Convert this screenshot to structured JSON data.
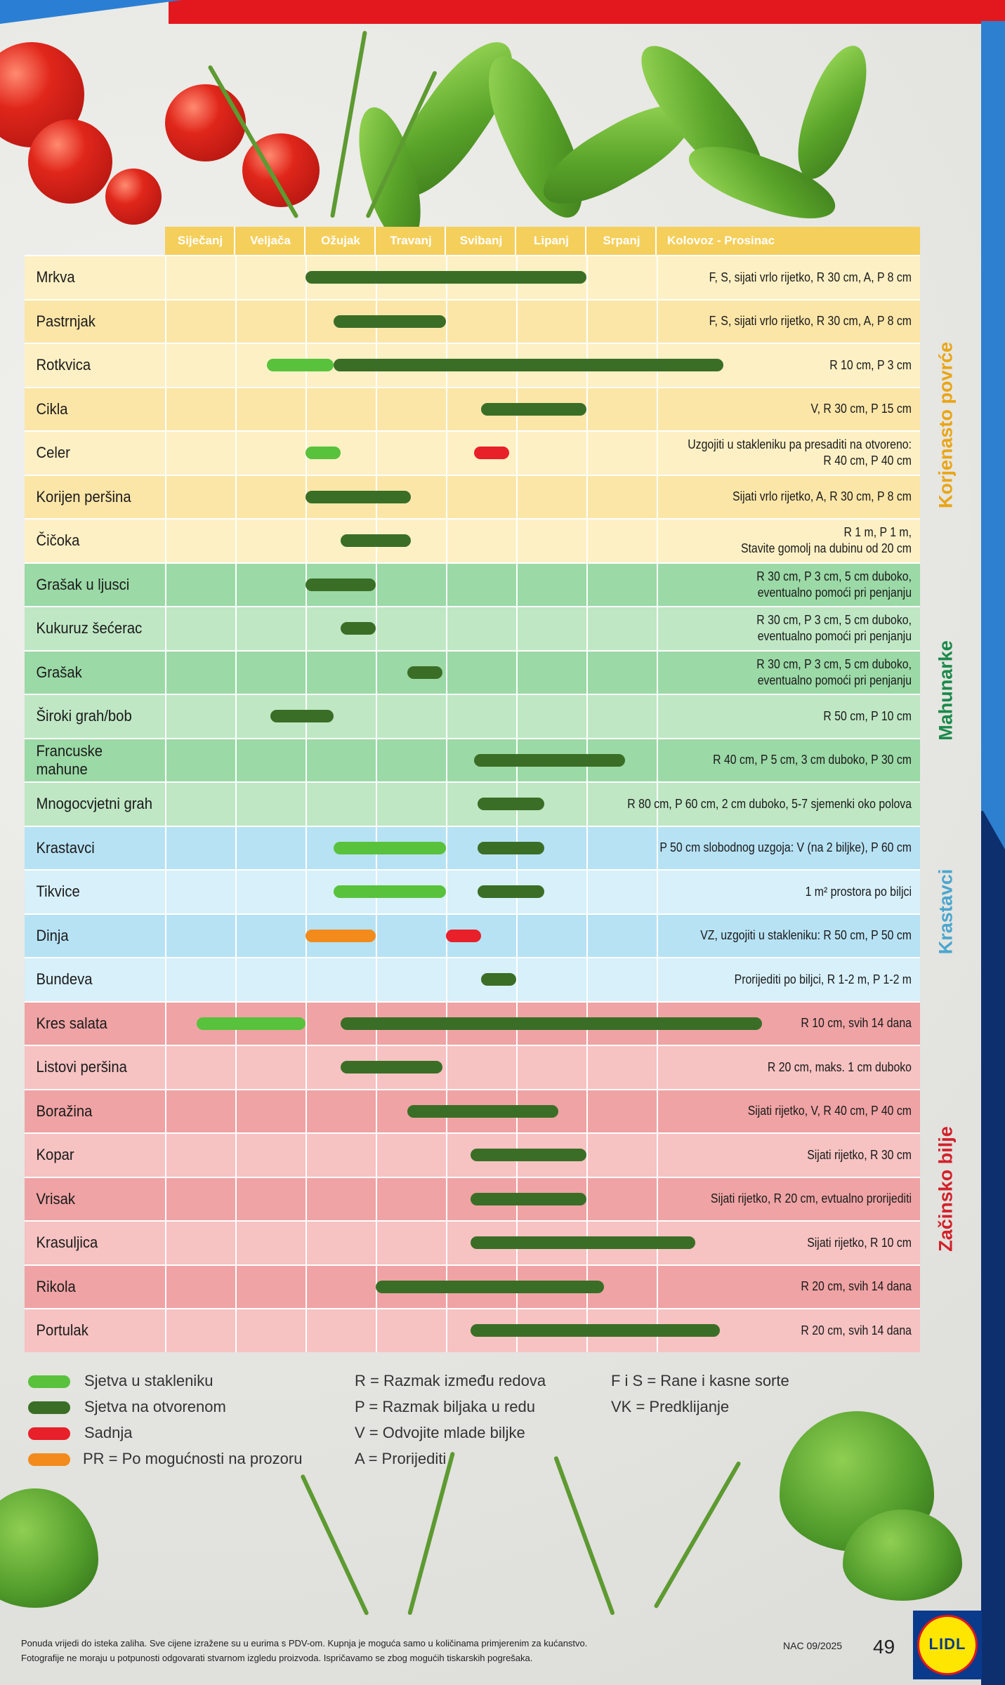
{
  "header": {
    "months": [
      "Siječanj",
      "Veljača",
      "Ožujak",
      "Travanj",
      "Svibanj",
      "Lipanj",
      "Srpanj"
    ],
    "last_range": "Kolovoz  -  Prosinac"
  },
  "groups": [
    {
      "label": "Korjenasto povrće",
      "color": "#e9a514"
    },
    {
      "label": "Mahunarke",
      "color": "#1a8a4a"
    },
    {
      "label": "Krastavci",
      "color": "#4aa6cf"
    },
    {
      "label": "Začinsko bilje",
      "color": "#d3202a"
    }
  ],
  "rows": [
    {
      "name": "Mrkva",
      "note": "F, S, sijati vrlo rijetko, R 30 cm,  A, P 8 cm"
    },
    {
      "name": "Pastrnjak",
      "note": "F, S, sijati vrlo rijetko, R 30 cm,  A, P 8 cm"
    },
    {
      "name": "Rotkvica",
      "note": "R 10 cm, P 3 cm"
    },
    {
      "name": "Cikla",
      "note": "V, R 30 cm, P 15 cm"
    },
    {
      "name": "Celer",
      "note": "Uzgojiti u stakleniku pa presaditi na otvoreno:\nR 40 cm, P 40 cm"
    },
    {
      "name": "Korijen peršina",
      "note": "Sijati vrlo rijetko, A, R 30 cm, P 8 cm"
    },
    {
      "name": "Čičoka",
      "note": "R 1 m, P 1 m,\nStavite gomolj na dubinu od 20 cm"
    },
    {
      "name": "Grašak u ljusci",
      "note": "R 30 cm, P 3 cm, 5 cm duboko,\neventualno pomoći pri penjanju"
    },
    {
      "name": "Kukuruz šećerac",
      "note": "R 30 cm, P 3 cm, 5 cm duboko,\neventualno pomoći pri penjanju"
    },
    {
      "name": "Grašak",
      "note": "R 30 cm, P 3 cm, 5 cm duboko,\neventualno pomoći pri penjanju"
    },
    {
      "name": "Široki grah/bob",
      "note": "R 50 cm, P 10 cm"
    },
    {
      "name": "Francuske mahune",
      "note": "R 40 cm, P 5 cm, 3 cm duboko, P 30 cm"
    },
    {
      "name": "Mnogocvjetni grah",
      "note": "R 80 cm, P 60 cm, 2 cm duboko, 5-7 sjemenki oko polova"
    },
    {
      "name": "Krastavci",
      "note": "P 50 cm slobodnog uzgoja: V (na 2 biljke), P 60 cm"
    },
    {
      "name": "Tikvice",
      "note": "1 m² prostora po biljci"
    },
    {
      "name": "Dinja",
      "note": "VZ, uzgojiti u stakleniku: R 50 cm, P 50 cm"
    },
    {
      "name": "Bundeva",
      "note": "Prorijediti po biljci, R 1-2 m, P 1-2 m"
    },
    {
      "name": "Kres salata",
      "note": "R 10 cm, svih 14 dana"
    },
    {
      "name": "Listovi peršina",
      "note": "R 20 cm, maks. 1 cm duboko"
    },
    {
      "name": "Boražina",
      "note": "Sijati rijetko, V, R 40 cm, P 40 cm"
    },
    {
      "name": "Kopar",
      "note": "Sijati rijetko, R 30 cm"
    },
    {
      "name": "Vrisak",
      "note": "Sijati rijetko, R 20 cm, evtualno prorijediti"
    },
    {
      "name": "Krasuljica",
      "note": "Sijati rijetko, R 10 cm"
    },
    {
      "name": "Rikola",
      "note": "R 20 cm, svih 14 dana"
    },
    {
      "name": "Portulak",
      "note": "R 20 cm, svih 14 dana"
    }
  ],
  "legend": {
    "col1": [
      "Sjetva u stakleniku",
      "Sjetva na otvorenom",
      "Sadnja",
      "PR = Po mogućnosti na prozoru"
    ],
    "col2": [
      "R = Razmak između redova",
      "P = Razmak biljaka u redu",
      "V = Odvojite mlade biljke",
      "A = Prorijediti"
    ],
    "col3": [
      "F i S = Rane i kasne sorte",
      "VK = Predklijanje"
    ]
  },
  "footer": {
    "line1": "Ponuda vrijedi do isteka zaliha. Sve cijene izražene su u eurima s PDV-om. Kupnja je moguća samo u količinama primjerenim za kućanstvo.",
    "line2": "Fotografije ne moraju u potpunosti odgovarati stvarnom izgledu proizvoda. Ispričavamo se zbog mogućih tiskarskih pogrešaka.",
    "code": "NAC 09/2025",
    "page_number": "49",
    "logo_text": "LIDL"
  }
}
